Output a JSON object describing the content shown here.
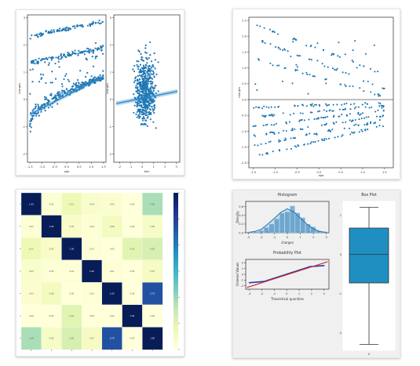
{
  "chart_data": [
    {
      "type": "scatter",
      "xlabel": "age",
      "ylabel": "charges",
      "xticks": [
        "-1.5",
        "-1.0",
        "-0.5",
        "0.0",
        "0.5",
        "1.0",
        "1.5"
      ],
      "yticks": [
        "3",
        "2",
        "1",
        "0",
        "-1",
        "-2"
      ],
      "xlim": [
        -1.6,
        1.6
      ],
      "ylim": [
        -2.3,
        3.1
      ],
      "grid": false,
      "clusters": [
        {
          "x": [
            -1.5,
            1.5
          ],
          "y": [
            2.3,
            2.85
          ],
          "spread": 0.07
        },
        {
          "x": [
            -1.5,
            1.5
          ],
          "y": [
            1.35,
            1.9
          ],
          "spread": 0.08
        },
        {
          "x": [
            -1.5,
            1.5
          ],
          "y": [
            -0.9,
            0.8
          ],
          "spread": 0.18
        }
      ],
      "regression": {
        "x": [
          -1.5,
          1.5
        ],
        "y": [
          -0.55,
          0.85
        ],
        "band": 0.07
      }
    },
    {
      "type": "scatter",
      "xlabel": "bmi",
      "ylabel": "charges",
      "xticks": [
        "-2",
        "-1",
        "0",
        "1",
        "2",
        "3"
      ],
      "yticks": [
        "3",
        "2",
        "1",
        "0",
        "-1",
        "-2"
      ],
      "xlim": [
        -2.5,
        3.3
      ],
      "ylim": [
        -2.3,
        3.1
      ],
      "grid": false,
      "regression": {
        "x": [
          -2.3,
          3.1
        ],
        "y": [
          -0.15,
          0.3
        ],
        "band": 0.08
      }
    },
    {
      "type": "scatter",
      "title": "",
      "xlabel": "age",
      "ylabel": "charges",
      "xticks": [
        "-1.5",
        "-1.0",
        "-0.5",
        "0.0",
        "0.5",
        "1.0",
        "1.5"
      ],
      "yticks": [
        "2.5",
        "2.0",
        "1.5",
        "1.0",
        "0.5",
        "0.0",
        "-0.5",
        "-1.0",
        "-1.5",
        "-2.0"
      ],
      "xlim": [
        -1.6,
        1.7
      ],
      "ylim": [
        -2.15,
        2.6
      ],
      "reference_line": 0,
      "bands": [
        {
          "y": [
            2.4,
            0.8
          ]
        },
        {
          "y": [
            1.95,
            0.35
          ]
        },
        {
          "y": [
            1.3,
            0.1
          ]
        },
        {
          "y": [
            -0.25,
            -0.1
          ]
        },
        {
          "y": [
            -0.55,
            -0.2
          ]
        },
        {
          "y": [
            -0.85,
            -0.35
          ]
        },
        {
          "y": [
            -1.15,
            -0.5
          ]
        },
        {
          "y": [
            -1.45,
            -0.65
          ]
        },
        {
          "y": [
            -1.8,
            -0.8
          ]
        }
      ]
    },
    {
      "type": "heatmap",
      "colormap": "YlGnBu",
      "n": 7,
      "values": [
        [
          1.0,
          0.02,
          0.11,
          0.04,
          0.03,
          0.0,
          0.3
        ],
        [
          0.02,
          1.0,
          0.05,
          0.02,
          0.08,
          0.0,
          0.06
        ],
        [
          0.11,
          0.05,
          1.0,
          0.01,
          0.0,
          0.16,
          0.2
        ],
        [
          0.04,
          0.02,
          0.01,
          1.0,
          0.01,
          0.0,
          0.07
        ],
        [
          0.03,
          0.08,
          0.0,
          0.01,
          1.0,
          0.0,
          0.79
        ],
        [
          0.0,
          0.0,
          0.16,
          0.0,
          0.0,
          1.0,
          0.0
        ],
        [
          0.3,
          0.06,
          0.2,
          0.07,
          0.79,
          0.0,
          1.0
        ]
      ]
    },
    {
      "type": "area",
      "title": "Histogram",
      "xlabel": "charges",
      "ylabel": "Density",
      "xticks": [
        "-3",
        "-2",
        "-1",
        "0",
        "1",
        "2",
        "3"
      ],
      "yticks": [
        "0.6",
        "0.4",
        "0.2",
        "0.0"
      ],
      "xlim": [
        -3.2,
        3.2
      ],
      "ylim": [
        0,
        0.72
      ],
      "bins": [
        -3.0,
        -2.6,
        -2.2,
        -1.8,
        -1.4,
        -1.0,
        -0.6,
        -0.2,
        0.2,
        0.6,
        1.0,
        1.4,
        1.8,
        2.2,
        2.6
      ],
      "counts": [
        0.01,
        0.02,
        0.05,
        0.12,
        0.2,
        0.32,
        0.45,
        0.48,
        0.62,
        0.46,
        0.35,
        0.2,
        0.14,
        0.05,
        0.02
      ],
      "kde_x": [
        -3.0,
        -2.5,
        -2.0,
        -1.5,
        -1.0,
        -0.5,
        0.0,
        0.5,
        1.0,
        1.5,
        2.0,
        2.5,
        3.0
      ],
      "kde_y": [
        0.01,
        0.03,
        0.08,
        0.2,
        0.33,
        0.47,
        0.55,
        0.48,
        0.34,
        0.2,
        0.09,
        0.03,
        0.01
      ]
    },
    {
      "type": "scatter",
      "title": "Probability Plot",
      "xlabel": "Theoretical quantiles",
      "ylabel": "Ordered Values",
      "xticks": [
        "-3",
        "-2",
        "-1",
        "0",
        "1",
        "2",
        "3"
      ],
      "yticks": [
        "2",
        "1",
        "0",
        "-1",
        "-2"
      ],
      "xlim": [
        -3.3,
        3.4
      ],
      "ylim": [
        -2.6,
        2.6
      ],
      "fit_line": {
        "x": [
          -3.2,
          3.3
        ],
        "y": [
          -2.3,
          2.2
        ]
      }
    },
    {
      "type": "box",
      "title": "Box Plot",
      "xtick": "0",
      "yticks": [
        "1",
        "0",
        "-1",
        "-2"
      ],
      "ylim": [
        -2.45,
        1.35
      ],
      "min": -2.3,
      "q1": -0.73,
      "median": 0.0,
      "q3": 0.67,
      "max": 1.2,
      "color": "#1f8fc1"
    }
  ],
  "colors": {
    "scatter": "#1f77b4",
    "regression": "#2a88c8",
    "heatmap_low": "#ffffd9",
    "heatmap_high": "#081d58",
    "fit_line": "#d62728",
    "qq_points": "#1f3fb4",
    "histogram": "#7fb3d5",
    "kde": "#1f77b4",
    "box": "#1f8fc1"
  }
}
